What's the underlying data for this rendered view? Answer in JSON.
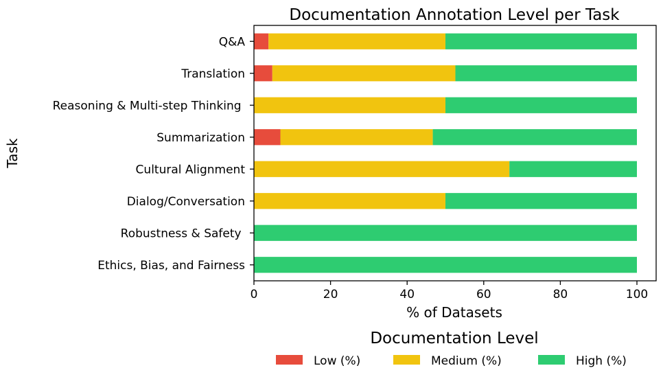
{
  "chart_data": {
    "type": "bar",
    "orientation": "horizontal",
    "stacked": true,
    "title": "Documentation Annotation Level per Task",
    "xlabel": "% of Datasets",
    "ylabel": "Task",
    "xlim": [
      0,
      105
    ],
    "xticks": [
      0,
      20,
      40,
      60,
      80,
      100
    ],
    "categories": [
      "Q&A",
      "Translation",
      "Reasoning & Multi-step Thinking ",
      "Summarization",
      "Cultural Alignment",
      "Dialog/Conversation",
      "Robustness & Safety ",
      "Ethics, Bias, and Fairness"
    ],
    "series": [
      {
        "name": "Low (%)",
        "color": "#e74c3c",
        "values": [
          3.8,
          4.8,
          0,
          6.9,
          0,
          0,
          0,
          0
        ]
      },
      {
        "name": "Medium (%)",
        "color": "#f1c40f",
        "values": [
          46.2,
          47.8,
          50,
          39.8,
          66.7,
          50,
          0,
          0
        ]
      },
      {
        "name": "High (%)",
        "color": "#2ecc71",
        "values": [
          50,
          47.4,
          50,
          53.3,
          33.3,
          50,
          100,
          100
        ]
      }
    ],
    "legend": {
      "title": "Documentation Level",
      "position": "bottom-center"
    },
    "grid": false
  }
}
